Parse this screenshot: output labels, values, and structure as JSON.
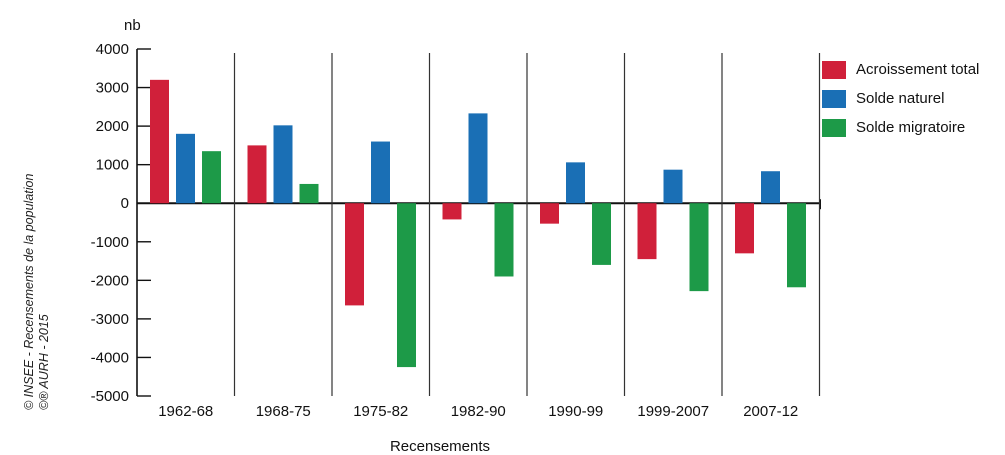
{
  "colors": {
    "acroissement": "#d0203a",
    "naturel": "#1a6fb5",
    "migratoire": "#1d9a48",
    "axis": "#111111"
  },
  "credit": {
    "line1": "© INSEE - Recensements de la population",
    "line2": "©® AURH - 2015"
  },
  "chart_data": {
    "type": "bar",
    "title": "",
    "ylabel": "nb",
    "xlabel": "Recensements",
    "ylim": [
      -5000,
      4000
    ],
    "yticks": [
      4000,
      3000,
      2000,
      1000,
      0,
      -1000,
      -2000,
      -3000,
      -4000,
      -5000
    ],
    "categories": [
      "1962-68",
      "1968-75",
      "1975-82",
      "1982-90",
      "1990-99",
      "1999-2007",
      "2007-12"
    ],
    "series": [
      {
        "name": "Acroissement total",
        "color": "#d0203a",
        "values": [
          3200,
          1500,
          -2650,
          -420,
          -530,
          -1450,
          -1300
        ]
      },
      {
        "name": "Solde naturel",
        "color": "#1a6fb5",
        "values": [
          1800,
          2020,
          1600,
          2330,
          1060,
          870,
          830
        ]
      },
      {
        "name": "Solde migratoire",
        "color": "#1d9a48",
        "values": [
          1350,
          500,
          -4250,
          -1900,
          -1600,
          -2280,
          -2180
        ]
      }
    ],
    "legend_position": "right",
    "grid": false
  }
}
